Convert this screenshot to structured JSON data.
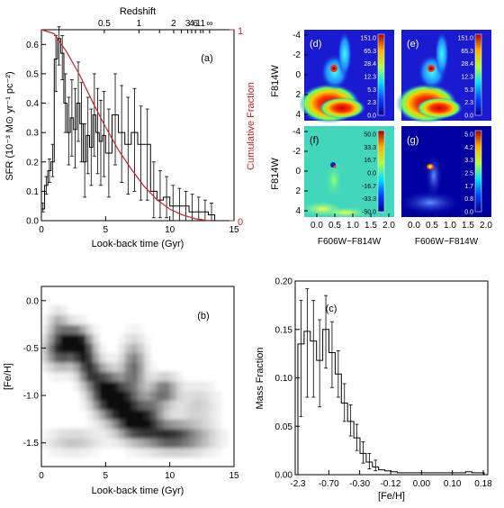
{
  "colors": {
    "red_curve": "#cc2222",
    "axis": "#000000",
    "cmd_bg_blue": "#1a1ad0"
  },
  "chart_data": [
    {
      "id": "a",
      "type": "line",
      "panel_label": "(a)",
      "xlabel": "Look-back time (Gyr)",
      "ylabel": "SFR (10⁻³ M⊙ yr⁻¹ pc⁻²)",
      "y2label": "Cumulative Fraction",
      "top_label": "Redshift",
      "xlim": [
        0,
        15
      ],
      "ylim": [
        0,
        0.65
      ],
      "y2lim": [
        0,
        1
      ],
      "xticks": [
        0,
        5,
        10,
        15
      ],
      "xtick_labels": [
        "0",
        "5",
        "10",
        "15"
      ],
      "yticks": [
        0.0,
        0.1,
        0.2,
        0.3,
        0.4,
        0.5,
        0.6
      ],
      "ytick_labels": [
        "0.0",
        "0.1",
        "0.2",
        "0.3",
        "0.4",
        "0.5",
        "0.6"
      ],
      "y2ticks": [
        0,
        1
      ],
      "y2tick_labels": [
        "0",
        "1"
      ],
      "top_ticks": [
        4.9,
        7.6,
        9.2,
        10.3,
        10.9,
        11.4,
        11.7,
        12.0,
        12.4,
        12.6,
        13.1
      ],
      "top_tick_labels": [
        "0.5",
        "1",
        "2",
        "3",
        "4",
        "6",
        "11",
        "∞"
      ],
      "top_label_positions": [
        4.9,
        7.6,
        10.3,
        11.4,
        11.7,
        12.0,
        12.4,
        13.1
      ],
      "series": [
        {
          "style": "step",
          "x": [
            0.0,
            0.25,
            0.5,
            0.75,
            1.0,
            1.25,
            1.5,
            1.75,
            2.0,
            2.25,
            2.5,
            2.75,
            3.0,
            3.25,
            3.5,
            3.75,
            4.0,
            4.25,
            4.5,
            4.75,
            5.0,
            5.5,
            6.0,
            6.5,
            7.0,
            7.5,
            8.0,
            8.5,
            9.0,
            9.5,
            10.0,
            10.5,
            11.0,
            11.5,
            12.0,
            12.5,
            13.0
          ],
          "values": [
            0.04,
            0.12,
            0.17,
            0.2,
            0.55,
            0.62,
            0.57,
            0.4,
            0.3,
            0.35,
            0.31,
            0.4,
            0.33,
            0.2,
            0.29,
            0.25,
            0.36,
            0.3,
            0.27,
            0.29,
            0.23,
            0.36,
            0.3,
            0.26,
            0.3,
            0.26,
            0.26,
            0.1,
            0.07,
            0.08,
            0.05,
            0.05,
            0.05,
            0.03,
            0.03,
            0.03,
            0.02
          ],
          "error_low": [
            0.03,
            0.09,
            0.13,
            0.15,
            0.44,
            0.53,
            0.48,
            0.3,
            0.19,
            0.22,
            0.18,
            0.27,
            0.2,
            0.08,
            0.16,
            0.12,
            0.22,
            0.16,
            0.12,
            0.15,
            0.08,
            0.19,
            0.13,
            0.09,
            0.1,
            0.07,
            0.07,
            0.01,
            0.01,
            0.01,
            0.0,
            0.0,
            0.0,
            0.0,
            0.0,
            0.0,
            0.0
          ],
          "error_high": [
            0.06,
            0.15,
            0.21,
            0.26,
            0.63,
            0.66,
            0.63,
            0.5,
            0.42,
            0.48,
            0.45,
            0.54,
            0.47,
            0.33,
            0.42,
            0.38,
            0.5,
            0.45,
            0.41,
            0.44,
            0.38,
            0.5,
            0.46,
            0.42,
            0.45,
            0.39,
            0.38,
            0.2,
            0.17,
            0.15,
            0.12,
            0.11,
            0.1,
            0.09,
            0.08,
            0.07,
            0.06
          ]
        },
        {
          "style": "line",
          "color": "#cc2222",
          "axis": "right",
          "x": [
            0,
            1,
            2,
            3,
            4,
            5,
            6,
            7,
            8,
            9,
            10,
            11,
            12,
            13
          ],
          "values": [
            1.0,
            0.98,
            0.88,
            0.76,
            0.62,
            0.49,
            0.37,
            0.27,
            0.18,
            0.11,
            0.06,
            0.03,
            0.01,
            0.0
          ]
        }
      ]
    },
    {
      "id": "b",
      "type": "heatmap",
      "panel_label": "(b)",
      "xlabel": "Look-back time (Gyr)",
      "ylabel": "[Fe/H]",
      "xlim": [
        0,
        15
      ],
      "ylim": [
        -1.75,
        0.15
      ],
      "xticks": [
        0,
        5,
        10,
        15
      ],
      "xtick_labels": [
        "0",
        "5",
        "10",
        "15"
      ],
      "yticks": [
        0.0,
        -0.5,
        -1.0,
        -1.5
      ],
      "ytick_labels": [
        "0.0",
        "-0.5",
        "-1.0",
        "-1.5"
      ],
      "blobs": [
        {
          "x": 1.5,
          "y": -0.52,
          "sx": 0.8,
          "sy": 0.12,
          "w": 0.85
        },
        {
          "x": 2.6,
          "y": -0.4,
          "sx": 0.7,
          "sy": 0.09,
          "w": 0.9
        },
        {
          "x": 1.3,
          "y": -0.25,
          "sx": 0.5,
          "sy": 0.1,
          "w": 0.35
        },
        {
          "x": 3.3,
          "y": -0.55,
          "sx": 0.6,
          "sy": 0.1,
          "w": 0.8
        },
        {
          "x": 3.8,
          "y": -0.75,
          "sx": 0.6,
          "sy": 0.1,
          "w": 0.7
        },
        {
          "x": 5.0,
          "y": -0.95,
          "sx": 0.8,
          "sy": 0.14,
          "w": 1.0
        },
        {
          "x": 6.2,
          "y": -1.1,
          "sx": 0.9,
          "sy": 0.15,
          "w": 0.95
        },
        {
          "x": 7.2,
          "y": -0.7,
          "sx": 0.6,
          "sy": 0.18,
          "w": 0.6
        },
        {
          "x": 7.3,
          "y": -1.3,
          "sx": 0.8,
          "sy": 0.12,
          "w": 0.8
        },
        {
          "x": 8.5,
          "y": -1.2,
          "sx": 0.7,
          "sy": 0.15,
          "w": 0.55
        },
        {
          "x": 9.6,
          "y": -0.95,
          "sx": 0.7,
          "sy": 0.1,
          "w": 0.6
        },
        {
          "x": 9.8,
          "y": -1.42,
          "sx": 1.2,
          "sy": 0.1,
          "w": 0.75
        },
        {
          "x": 11.8,
          "y": -1.45,
          "sx": 1.3,
          "sy": 0.1,
          "w": 0.35
        },
        {
          "x": 2.5,
          "y": -1.48,
          "sx": 1.4,
          "sy": 0.08,
          "w": 0.25
        },
        {
          "x": 12.2,
          "y": -1.1,
          "sx": 1.0,
          "sy": 0.15,
          "w": 0.2
        }
      ]
    },
    {
      "id": "c",
      "type": "bar",
      "panel_label": "(c)",
      "xlabel": "[Fe/H]",
      "ylabel": "Mass Fraction",
      "ylim": [
        0,
        0.2
      ],
      "yticks": [
        0.0,
        0.05,
        0.1,
        0.15,
        0.2
      ],
      "ytick_labels": [
        "0.00",
        "0.05",
        "0.10",
        "0.15",
        "0.20"
      ],
      "xtick_labels": [
        "-2.3",
        "-0.70",
        "-0.30",
        "-0.12",
        "0.00",
        "0.10",
        "0.18"
      ],
      "values": [
        0.135,
        0.148,
        0.138,
        0.118,
        0.15,
        0.126,
        0.104,
        0.074,
        0.055,
        0.038,
        0.022,
        0.013,
        0.008,
        0.005,
        0.004,
        0.003,
        0.002,
        0.002,
        0.002,
        0.002,
        0.002,
        0.002,
        0.002,
        0.002,
        0.002,
        0.002,
        0.002,
        0.003,
        0.002,
        0.002
      ],
      "error_low": [
        0.06,
        0.08,
        0.08,
        0.07,
        0.11,
        0.09,
        0.08,
        0.055,
        0.04,
        0.025,
        0.012,
        0.006,
        0.004
      ],
      "error_high": [
        0.18,
        0.192,
        0.18,
        0.16,
        0.185,
        0.158,
        0.128,
        0.094,
        0.072,
        0.052,
        0.034,
        0.022,
        0.015
      ]
    },
    {
      "id": "cmd",
      "type": "heatmap",
      "xlabel": "F606W−F814W",
      "ylabel": "F814W",
      "xticks": [
        0.0,
        0.5,
        1.0,
        1.5,
        2.0
      ],
      "xtick_labels": [
        "0.0",
        "0.5",
        "1.0",
        "1.5",
        "2.0"
      ],
      "yticks": [
        -4,
        -2,
        0,
        2,
        4
      ],
      "ytick_labels": [
        "-4",
        "-2",
        "0",
        "2",
        "4"
      ],
      "panels": [
        {
          "label": "(d)",
          "kind": "density",
          "colorbar": [
            "151.0",
            "65.3",
            "28.4",
            "12.3",
            "5.3",
            "2.3",
            "0.0"
          ]
        },
        {
          "label": "(e)",
          "kind": "density",
          "colorbar": [
            "151.0",
            "65.3",
            "28.4",
            "12.3",
            "5.3",
            "2.3",
            "0.0"
          ]
        },
        {
          "label": "(f)",
          "kind": "residual",
          "colorbar": [
            "50.0",
            "33.3",
            "16.7",
            "0.0",
            "-16.7",
            "-33.3",
            "-50.0"
          ]
        },
        {
          "label": "(g)",
          "kind": "significance",
          "colorbar": [
            "5.0",
            "4.2",
            "3.3",
            "2.5",
            "1.7",
            "0.8",
            "0.0"
          ]
        }
      ]
    }
  ]
}
